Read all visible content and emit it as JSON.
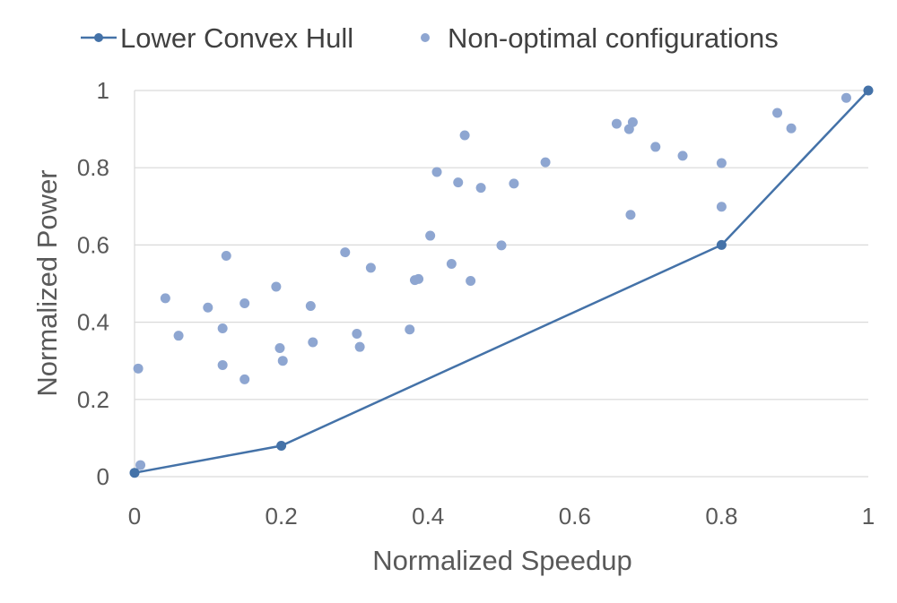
{
  "chart_data": {
    "type": "scatter",
    "xlabel": "Normalized Speedup",
    "ylabel": "Normalized Power",
    "xlim": [
      0,
      1
    ],
    "ylim": [
      0,
      1
    ],
    "xticks": [
      "0",
      "0.2",
      "0.4",
      "0.6",
      "0.8",
      "1"
    ],
    "yticks": [
      "0",
      "0.2",
      "0.4",
      "0.6",
      "0.8",
      "1"
    ],
    "grid": "horizontal",
    "legend_position": "top",
    "series": [
      {
        "name": "Lower Convex Hull",
        "kind": "line-markers",
        "color": "#4472a8",
        "points": [
          [
            0.0,
            0.01
          ],
          [
            0.2,
            0.08
          ],
          [
            0.8,
            0.6
          ],
          [
            1.0,
            1.0
          ]
        ]
      },
      {
        "name": "Non-optimal configurations",
        "kind": "scatter",
        "color": "#8ea6d1",
        "points": [
          [
            0.005,
            0.28
          ],
          [
            0.008,
            0.03
          ],
          [
            0.042,
            0.462
          ],
          [
            0.06,
            0.365
          ],
          [
            0.1,
            0.438
          ],
          [
            0.12,
            0.384
          ],
          [
            0.12,
            0.289
          ],
          [
            0.125,
            0.572
          ],
          [
            0.15,
            0.449
          ],
          [
            0.15,
            0.252
          ],
          [
            0.193,
            0.492
          ],
          [
            0.198,
            0.333
          ],
          [
            0.202,
            0.3
          ],
          [
            0.24,
            0.442
          ],
          [
            0.243,
            0.348
          ],
          [
            0.287,
            0.581
          ],
          [
            0.303,
            0.37
          ],
          [
            0.307,
            0.336
          ],
          [
            0.322,
            0.541
          ],
          [
            0.375,
            0.381
          ],
          [
            0.382,
            0.509
          ],
          [
            0.387,
            0.512
          ],
          [
            0.403,
            0.624
          ],
          [
            0.412,
            0.789
          ],
          [
            0.432,
            0.551
          ],
          [
            0.441,
            0.762
          ],
          [
            0.45,
            0.884
          ],
          [
            0.458,
            0.507
          ],
          [
            0.472,
            0.748
          ],
          [
            0.5,
            0.599
          ],
          [
            0.517,
            0.759
          ],
          [
            0.56,
            0.814
          ],
          [
            0.657,
            0.914
          ],
          [
            0.674,
            0.9
          ],
          [
            0.676,
            0.678
          ],
          [
            0.679,
            0.918
          ],
          [
            0.71,
            0.854
          ],
          [
            0.747,
            0.831
          ],
          [
            0.8,
            0.812
          ],
          [
            0.8,
            0.699
          ],
          [
            0.876,
            0.942
          ],
          [
            0.895,
            0.902
          ],
          [
            0.97,
            0.981
          ]
        ]
      }
    ]
  }
}
